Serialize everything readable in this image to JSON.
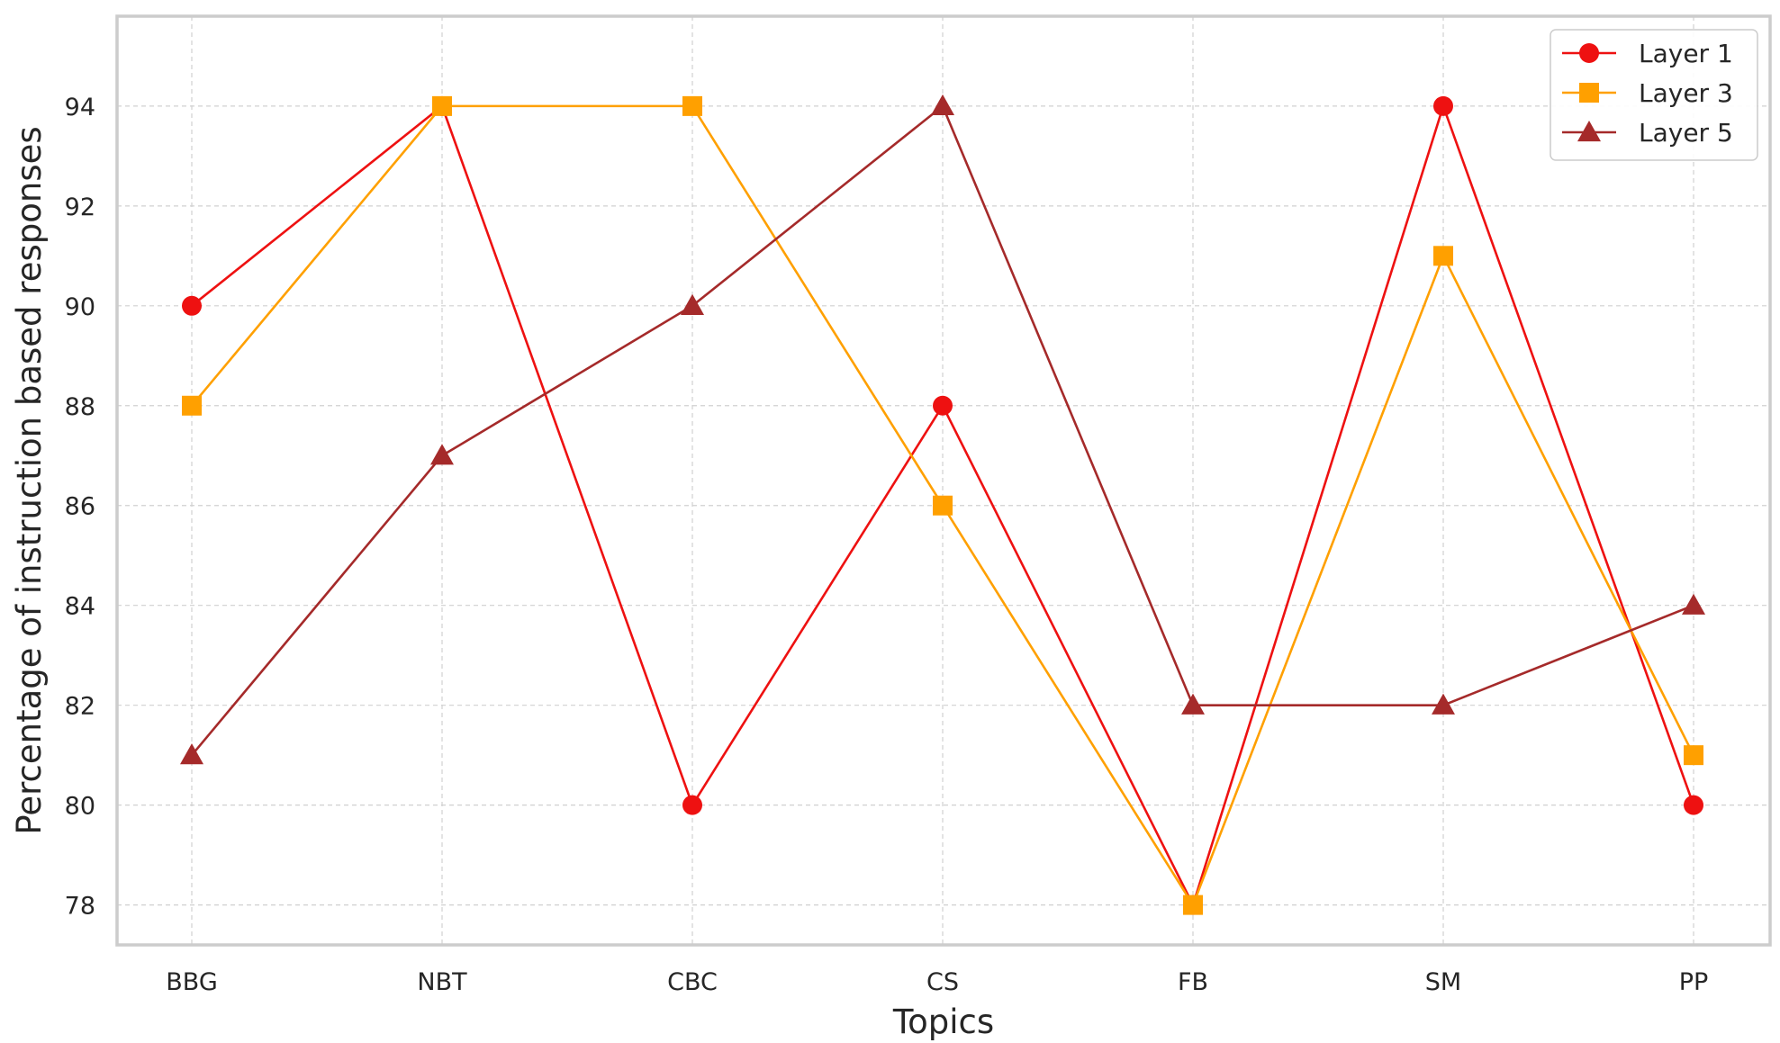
{
  "chart_data": {
    "type": "line",
    "title": "",
    "xlabel": "Topics",
    "ylabel": "Percentage of instruction based responses",
    "categories": [
      "BBG",
      "NBT",
      "CBC",
      "CS",
      "FB",
      "SM",
      "PP"
    ],
    "yticks": [
      78,
      80,
      82,
      84,
      86,
      88,
      90,
      92,
      94
    ],
    "ylim": [
      77.2,
      95.8
    ],
    "grid": true,
    "legend": "top-right",
    "series": [
      {
        "name": "Layer 1",
        "color": "#ee1111",
        "marker": "circle",
        "values": [
          90,
          94,
          80,
          88,
          78,
          94,
          80
        ]
      },
      {
        "name": "Layer 3",
        "color": "#ffa000",
        "marker": "square",
        "values": [
          88,
          94,
          94,
          86,
          78,
          91,
          81
        ]
      },
      {
        "name": "Layer 5",
        "color": "#a52a2a",
        "marker": "triangle",
        "values": [
          81,
          87,
          90,
          94,
          82,
          82,
          84
        ]
      }
    ]
  }
}
